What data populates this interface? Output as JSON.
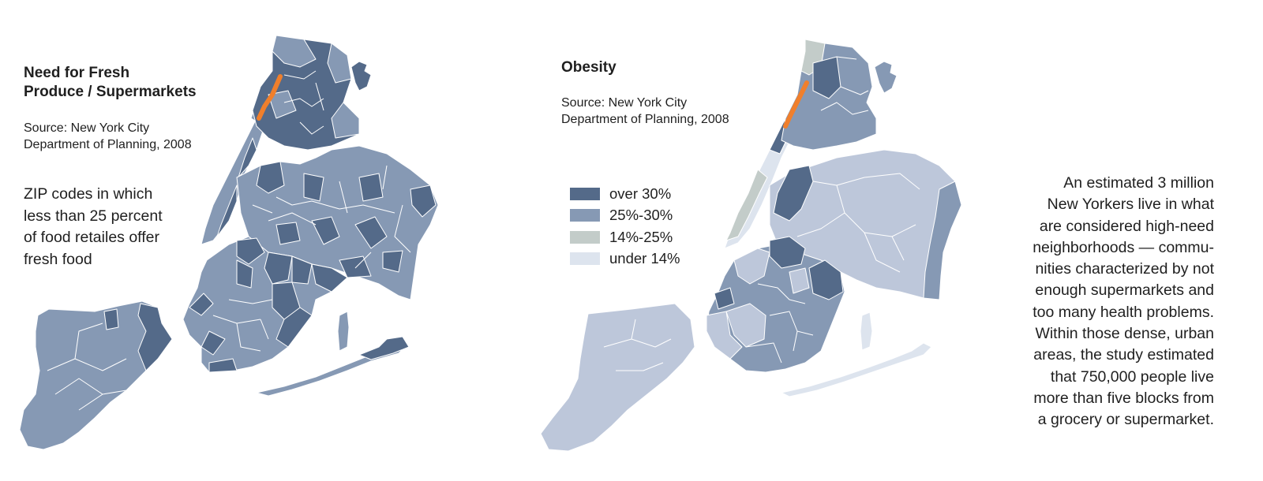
{
  "colors": {
    "high_need": "#546a89",
    "low_need": "#8699b4",
    "over_30": "#546a89",
    "25_30": "#8699b4",
    "14_25": "#c3ccc9",
    "under_14": "#dde4ee",
    "lightblue_fill": "#bdc7da",
    "highlight": "#f07f2c"
  },
  "left_panel": {
    "title": "Need for Fresh\nProduce / Supermarkets",
    "source": "Source: New York City\nDepartment of Planning, 2008",
    "description": "ZIP codes in which\nless than 25 percent\nof food retailes offer\nfresh food"
  },
  "right_panel": {
    "title": "Obesity",
    "source": "Source: New York City\nDepartment of Planning, 2008",
    "legend": [
      {
        "label": "over 30%",
        "color": "#546a89"
      },
      {
        "label": "25%-30%",
        "color": "#8699b4"
      },
      {
        "label": "14%-25%",
        "color": "#c3ccc9"
      },
      {
        "label": "under 14%",
        "color": "#dde4ee"
      }
    ]
  },
  "side_note": "An estimated 3 million\nNew Yorkers live in what\nare considered high-need\nneighborhoods — commu-\nnities characterized by not\nenough supermarkets and\ntoo many health problems.\nWithin those dense, urban\nareas, the study estimated\nthat 750,000 people live\nmore than five blocks from\na grocery or supermarket."
}
